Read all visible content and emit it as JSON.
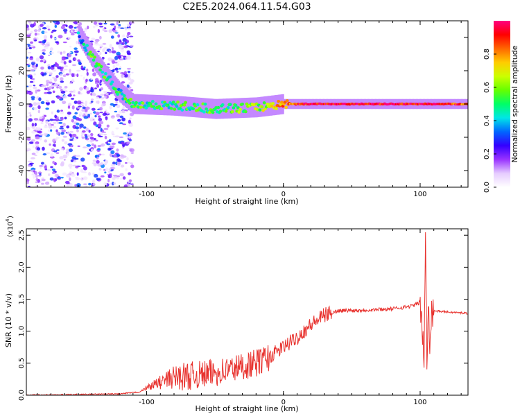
{
  "title": "C2E5.2024.064.11.54.G03",
  "chart_data": [
    {
      "type": "heatmap",
      "xlabel": "Height of straight line (km)",
      "ylabel": "Frequency (Hz)",
      "xlim": [
        -188,
        135
      ],
      "ylim": [
        -50,
        50
      ],
      "x_ticks": [
        -100,
        0,
        100
      ],
      "x_tick_labels": [
        "-100",
        "0",
        "100"
      ],
      "y_ticks": [
        -40,
        -20,
        0,
        20,
        40
      ],
      "y_tick_labels": [
        "-40",
        "-20",
        "0",
        "20",
        "40"
      ],
      "colorbar": {
        "label": "Normalized spectral amplitude",
        "range": [
          0,
          1
        ],
        "ticks": [
          0.0,
          0.2,
          0.4,
          0.6,
          0.8
        ],
        "tick_labels": [
          "0.0",
          "0.2",
          "0.4",
          "0.6",
          "0.8"
        ],
        "colormap": [
          "#ffffff",
          "#e6ccff",
          "#9933ff",
          "#3300ff",
          "#0066ff",
          "#00e6e6",
          "#00ff66",
          "#66ff00",
          "#ccff00",
          "#ffcc00",
          "#ff6600",
          "#ff0000",
          "#ff0080"
        ]
      },
      "ridge": [
        {
          "x": -150,
          "f": 42,
          "a": 0.3
        },
        {
          "x": -140,
          "f": 28,
          "a": 0.55
        },
        {
          "x": -130,
          "f": 17,
          "a": 0.5
        },
        {
          "x": -120,
          "f": 7,
          "a": 0.45
        },
        {
          "x": -110,
          "f": 0,
          "a": 0.5
        },
        {
          "x": -80,
          "f": -1,
          "a": 0.5
        },
        {
          "x": -50,
          "f": -3,
          "a": 0.5
        },
        {
          "x": -20,
          "f": -2,
          "a": 0.6
        },
        {
          "x": 0,
          "f": 0,
          "a": 0.8
        },
        {
          "x": 20,
          "f": 0,
          "a": 0.95
        },
        {
          "x": 60,
          "f": 0,
          "a": 0.95
        },
        {
          "x": 100,
          "f": 0,
          "a": 0.95
        },
        {
          "x": 135,
          "f": 0,
          "a": 0.85
        }
      ]
    },
    {
      "type": "line",
      "xlabel": "Height of straight line (km)",
      "ylabel": "SNR (10 * v/v)",
      "y_scale_label": "(x10",
      "y_scale_exponent": "4",
      "xlim": [
        -188,
        135
      ],
      "ylim": [
        0,
        2.6
      ],
      "x_ticks": [
        -100,
        0,
        100
      ],
      "x_tick_labels": [
        "-100",
        "0",
        "100"
      ],
      "y_ticks": [
        0.0,
        0.5,
        1.0,
        1.5,
        2.0,
        2.5
      ],
      "y_tick_labels": [
        "0.0",
        "0.5",
        "1.0",
        "1.5",
        "2.0",
        "2.5"
      ],
      "series": [
        {
          "color": "#e8322e",
          "x": [
            -188,
            -150,
            -120,
            -105,
            -100,
            -90,
            -80,
            -70,
            -60,
            -50,
            -40,
            -30,
            -20,
            -15,
            -10,
            0,
            10,
            20,
            30,
            40,
            60,
            80,
            90,
            95,
            100,
            103,
            104,
            105,
            106,
            107,
            108,
            110,
            120,
            135
          ],
          "y": [
            0.0,
            0.01,
            0.02,
            0.05,
            0.12,
            0.2,
            0.28,
            0.3,
            0.32,
            0.35,
            0.4,
            0.45,
            0.5,
            0.55,
            0.6,
            0.75,
            0.9,
            1.1,
            1.25,
            1.32,
            1.33,
            1.35,
            1.38,
            1.4,
            1.45,
            0.6,
            2.55,
            0.3,
            1.6,
            0.9,
            1.3,
            1.32,
            1.3,
            1.28
          ]
        }
      ]
    }
  ]
}
